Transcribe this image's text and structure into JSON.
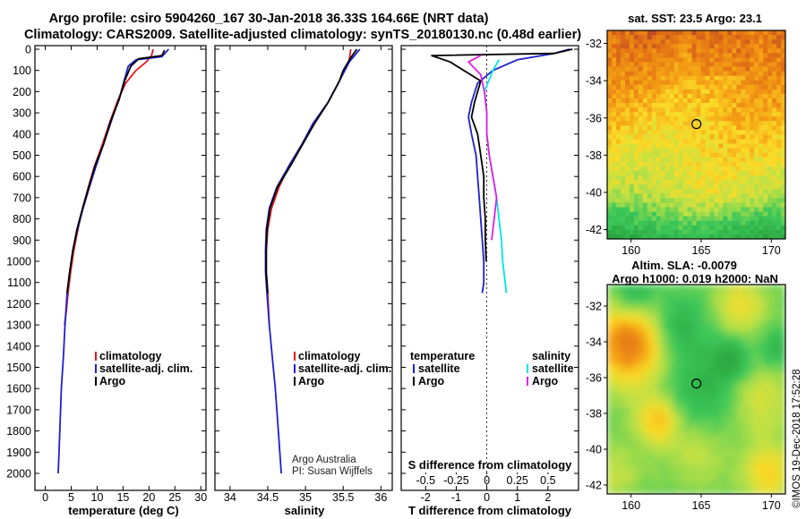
{
  "title": {
    "line1": "Argo profile: csiro 5904260_167 30-Jan-2018 36.33S 164.66E (NRT data)",
    "line2": "Climatology: CARS2009. Satellite-adjusted climatology: synTS_20180130.nc (0.48d earlier)"
  },
  "colors": {
    "climatology": "#e41a1c",
    "satellite": "#1f1fd0",
    "argo": "#000000",
    "sal_satellite": "#00e5e5",
    "sal_argo": "#e020e0"
  },
  "chart_data": [
    {
      "type": "line",
      "name": "temperature",
      "xlabel": "temperature (deg C)",
      "xlim": [
        -2,
        31
      ],
      "ylim": [
        2050,
        0
      ],
      "xticks": [
        "0",
        "5",
        "10",
        "15",
        "20",
        "25",
        "30"
      ],
      "yticks": [
        "0",
        "100",
        "200",
        "300",
        "400",
        "500",
        "600",
        "700",
        "800",
        "900",
        "1000",
        "1100",
        "1200",
        "1300",
        "1400",
        "1500",
        "1600",
        "1700",
        "1800",
        "1900",
        "2000"
      ],
      "series": [
        {
          "name": "climatology",
          "points": [
            [
              20.8,
              0
            ],
            [
              20.5,
              30
            ],
            [
              19.5,
              60
            ],
            [
              17.5,
              100
            ],
            [
              15.5,
              160
            ],
            [
              14,
              240
            ],
            [
              12.5,
              340
            ],
            [
              11,
              450
            ],
            [
              9.5,
              550
            ],
            [
              8.3,
              650
            ],
            [
              7.2,
              750
            ],
            [
              6.3,
              850
            ],
            [
              5.5,
              950
            ],
            [
              4.9,
              1050
            ],
            [
              4.4,
              1150
            ],
            [
              4,
              1250
            ],
            [
              3.7,
              1300
            ]
          ]
        },
        {
          "name": "satellite-adj. clim.",
          "points": [
            [
              23.8,
              0
            ],
            [
              22.5,
              35
            ],
            [
              17.5,
              50
            ],
            [
              16,
              80
            ],
            [
              15.2,
              150
            ],
            [
              14.3,
              230
            ],
            [
              13,
              320
            ],
            [
              11.5,
              430
            ],
            [
              9.8,
              550
            ],
            [
              8.5,
              650
            ],
            [
              7.3,
              750
            ],
            [
              6.2,
              850
            ],
            [
              5.3,
              950
            ],
            [
              4.7,
              1050
            ],
            [
              4.2,
              1150
            ],
            [
              3.8,
              1300
            ],
            [
              3.5,
              1450
            ],
            [
              3.1,
              1600
            ],
            [
              2.8,
              1800
            ],
            [
              2.5,
              2000
            ]
          ]
        },
        {
          "name": "Argo",
          "points": [
            [
              23,
              5
            ],
            [
              22.5,
              30
            ],
            [
              18,
              45
            ],
            [
              16.5,
              80
            ],
            [
              15.3,
              150
            ],
            [
              14.2,
              240
            ],
            [
              12.6,
              340
            ],
            [
              11.2,
              450
            ],
            [
              9.6,
              550
            ],
            [
              8.4,
              650
            ],
            [
              7.2,
              750
            ],
            [
              6.1,
              850
            ],
            [
              5.3,
              950
            ],
            [
              4.7,
              1050
            ],
            [
              4.2,
              1150
            ]
          ]
        }
      ],
      "legend": [
        "climatology",
        "satellite-adj. clim.",
        "Argo"
      ]
    },
    {
      "type": "line",
      "name": "salinity",
      "xlabel": "salinity",
      "xlim": [
        33.8,
        36.15
      ],
      "ylim": [
        2050,
        0
      ],
      "xticks": [
        "34",
        "34.5",
        "35",
        "35.5",
        "36"
      ],
      "series": [
        {
          "name": "climatology",
          "points": [
            [
              35.6,
              0
            ],
            [
              35.58,
              50
            ],
            [
              35.45,
              150
            ],
            [
              35.3,
              250
            ],
            [
              35.12,
              350
            ],
            [
              34.95,
              450
            ],
            [
              34.78,
              550
            ],
            [
              34.65,
              650
            ],
            [
              34.55,
              750
            ],
            [
              34.5,
              850
            ],
            [
              34.48,
              950
            ],
            [
              34.48,
              1050
            ],
            [
              34.5,
              1150
            ],
            [
              34.52,
              1300
            ]
          ]
        },
        {
          "name": "satellite-adj. clim.",
          "points": [
            [
              35.72,
              0
            ],
            [
              35.65,
              30
            ],
            [
              35.58,
              60
            ],
            [
              35.45,
              150
            ],
            [
              35.3,
              250
            ],
            [
              35.1,
              350
            ],
            [
              34.95,
              450
            ],
            [
              34.78,
              550
            ],
            [
              34.62,
              650
            ],
            [
              34.52,
              750
            ],
            [
              34.48,
              850
            ],
            [
              34.47,
              950
            ],
            [
              34.47,
              1050
            ],
            [
              34.49,
              1150
            ],
            [
              34.52,
              1300
            ],
            [
              34.56,
              1450
            ],
            [
              34.6,
              1600
            ],
            [
              34.64,
              1800
            ],
            [
              34.68,
              2000
            ]
          ]
        },
        {
          "name": "Argo",
          "points": [
            [
              35.68,
              0
            ],
            [
              35.6,
              40
            ],
            [
              35.5,
              100
            ],
            [
              35.45,
              150
            ],
            [
              35.3,
              250
            ],
            [
              35.12,
              350
            ],
            [
              34.96,
              450
            ],
            [
              34.8,
              550
            ],
            [
              34.63,
              650
            ],
            [
              34.53,
              750
            ],
            [
              34.49,
              850
            ],
            [
              34.48,
              950
            ],
            [
              34.48,
              1050
            ],
            [
              34.5,
              1150
            ]
          ]
        }
      ],
      "legend": [
        "climatology",
        "satellite-adj. clim.",
        "Argo"
      ],
      "annotation": [
        "Argo Australia",
        "PI: Susan Wijffels"
      ]
    },
    {
      "type": "line",
      "name": "difference",
      "xlabel": "T difference from climatology",
      "xlabel_top": "S difference from climatology",
      "xlim": [
        -2.8,
        3.0
      ],
      "xlim_s": [
        -0.7,
        0.75
      ],
      "ylim": [
        1250,
        0
      ],
      "xticks": [
        "-2",
        "-1",
        "0",
        "1",
        "2"
      ],
      "xticks_s": [
        "-0.5",
        "-0.25",
        "0",
        "0.25",
        "0.5"
      ],
      "series": [
        {
          "name": "temperature satellite",
          "points": [
            [
              2.7,
              0
            ],
            [
              2.2,
              20
            ],
            [
              1,
              50
            ],
            [
              0.2,
              100
            ],
            [
              -0.3,
              160
            ],
            [
              -0.5,
              250
            ],
            [
              -0.6,
              320
            ],
            [
              -0.5,
              400
            ],
            [
              -0.35,
              500
            ],
            [
              -0.3,
              600
            ],
            [
              -0.25,
              700
            ],
            [
              -0.2,
              800
            ],
            [
              -0.15,
              900
            ],
            [
              -0.1,
              1000
            ],
            [
              -0.1,
              1100
            ],
            [
              -0.15,
              1150
            ]
          ]
        },
        {
          "name": "temperature Argo",
          "points": [
            [
              2.8,
              0
            ],
            [
              2.2,
              20
            ],
            [
              -1.8,
              30
            ],
            [
              -1.2,
              60
            ],
            [
              -0.2,
              150
            ],
            [
              -0.4,
              250
            ],
            [
              -0.5,
              320
            ],
            [
              -0.3,
              400
            ],
            [
              -0.2,
              500
            ],
            [
              -0.1,
              600
            ],
            [
              -0.1,
              700
            ],
            [
              -0.05,
              800
            ],
            [
              -0.05,
              900
            ],
            [
              -0.02,
              1000
            ]
          ]
        },
        {
          "name": "salinity satellite",
          "points": [
            [
              0.1,
              50
            ],
            [
              0.05,
              100
            ],
            [
              -0.02,
              200
            ],
            [
              0,
              300
            ],
            [
              0,
              400
            ],
            [
              0.02,
              500
            ],
            [
              0.05,
              600
            ],
            [
              0.08,
              700
            ],
            [
              0.1,
              800
            ],
            [
              0.12,
              900
            ],
            [
              0.13,
              1000
            ],
            [
              0.15,
              1100
            ],
            [
              0.16,
              1150
            ]
          ]
        },
        {
          "name": "salinity Argo",
          "points": [
            [
              -0.05,
              30
            ],
            [
              -0.15,
              60
            ],
            [
              -0.05,
              120
            ],
            [
              -0.02,
              200
            ],
            [
              0,
              300
            ],
            [
              0,
              400
            ],
            [
              0.02,
              500
            ],
            [
              0.05,
              600
            ],
            [
              0.08,
              700
            ],
            [
              0.06,
              800
            ],
            [
              0.04,
              900
            ]
          ]
        }
      ],
      "legend_t": {
        "title": "temperature",
        "items": [
          "satellite",
          "Argo"
        ]
      },
      "legend_s": {
        "title": "salinity",
        "items": [
          "satellite",
          "Argo"
        ]
      }
    },
    {
      "type": "heatmap",
      "name": "sst",
      "title": "sat. SST: 23.5  Argo: 23.1",
      "xlim": [
        158.3,
        171.0
      ],
      "ylim": [
        -42.5,
        -31.3
      ],
      "xticks": [
        "160",
        "165",
        "170"
      ],
      "yticks": [
        "-32",
        "-34",
        "-36",
        "-38",
        "-40",
        "-42"
      ],
      "marker": [
        164.66,
        -36.33
      ]
    },
    {
      "type": "heatmap",
      "name": "sla",
      "title": "Altim. SLA: -0.0079",
      "subtitle": "Argo h1000: 0.019 h2000: NaN",
      "xlim": [
        158.3,
        171.0
      ],
      "ylim": [
        -42.5,
        -30.8
      ],
      "xticks": [
        "160",
        "165",
        "170"
      ],
      "yticks": [
        "-32",
        "-34",
        "-36",
        "-38",
        "-40",
        "-42"
      ],
      "marker": [
        164.66,
        -36.33
      ]
    }
  ],
  "footer": "©IMOS 19-Dec-2018 17:52:28"
}
